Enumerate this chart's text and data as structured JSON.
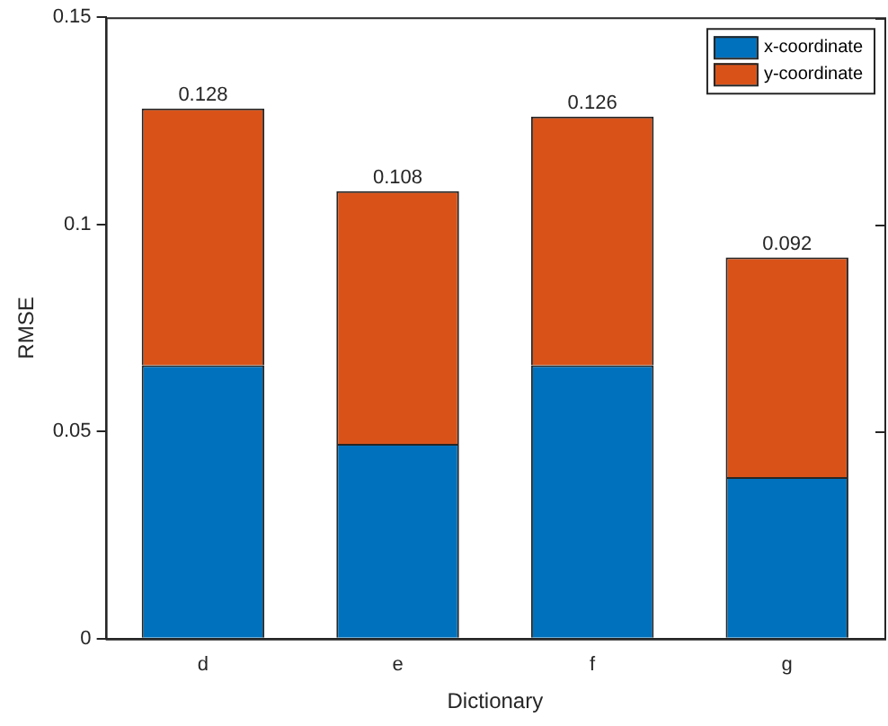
{
  "chart_data": {
    "type": "bar",
    "xlabel": "Dictionary",
    "ylabel": "RMSE",
    "categories": [
      "d",
      "e",
      "f",
      "g"
    ],
    "series": [
      {
        "name": "x-coordinate",
        "color": "#0072bd",
        "values": [
          0.066,
          0.047,
          0.066,
          0.039
        ]
      },
      {
        "name": "y-coordinate",
        "color": "#d95319",
        "values": [
          0.062,
          0.061,
          0.06,
          0.053
        ]
      }
    ],
    "stacked": true,
    "totals": [
      "0.128",
      "0.108",
      "0.126",
      "0.092"
    ],
    "ylim": [
      0,
      0.15
    ],
    "yticks": [
      0,
      0.05,
      0.1,
      0.15
    ],
    "grid": false,
    "legend": "top right"
  }
}
